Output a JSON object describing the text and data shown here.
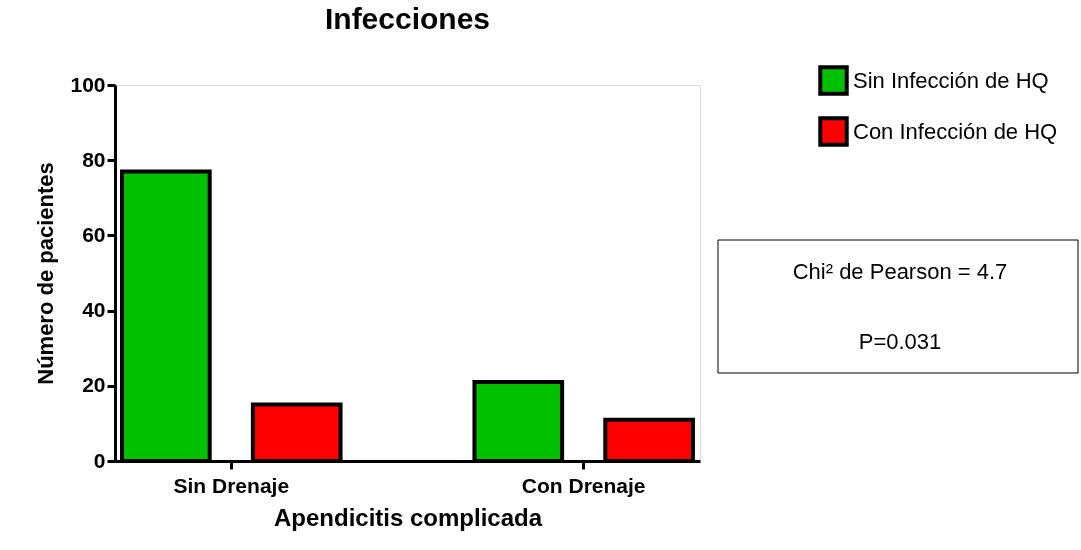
{
  "chart_data": {
    "type": "bar",
    "title": "Infecciones",
    "xlabel": "Apendicitis complicada",
    "ylabel": "Número de pacientes",
    "categories": [
      "Sin Drenaje",
      "Con Drenaje"
    ],
    "series": [
      {
        "name": "Sin Infección de HQ",
        "color": "#00c000",
        "values": [
          77,
          21
        ]
      },
      {
        "name": "Con Infección de HQ",
        "color": "#ff0000",
        "values": [
          15,
          11
        ]
      }
    ],
    "ylim": [
      0,
      100
    ],
    "yticks": [
      0,
      20,
      40,
      60,
      80,
      100
    ],
    "grid": false,
    "legend": "top right",
    "annotations": [
      "Chi² de Pearson = 4.7",
      "P=0.031"
    ]
  }
}
